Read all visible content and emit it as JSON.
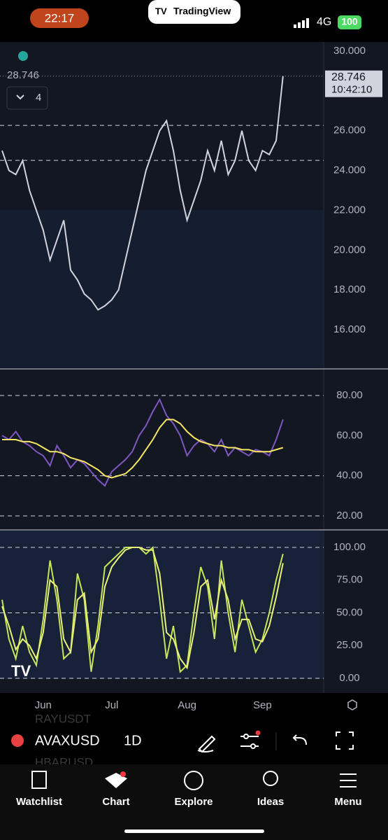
{
  "status_bar": {
    "time": "22:17",
    "app": "TradingView",
    "network": "4G",
    "battery": "100"
  },
  "legend": {
    "price": 28.746,
    "indicators": "4"
  },
  "chart_data": [
    {
      "type": "line",
      "categories": [
        null,
        null,
        null,
        null,
        null,
        null,
        "Jun",
        null,
        null,
        null,
        null,
        null,
        null,
        null,
        null,
        null,
        "Jul",
        null,
        null,
        null,
        null,
        null,
        null,
        null,
        null,
        null,
        null,
        "Aug",
        null,
        null,
        null,
        null,
        null,
        null,
        null,
        null,
        null,
        null,
        "Sep",
        null,
        null,
        null
      ],
      "series": [
        {
          "color": "#d1d4dc",
          "values": [
            25.0,
            24.0,
            23.8,
            24.5,
            23.0,
            22.0,
            21.0,
            19.5,
            20.5,
            21.5,
            19.0,
            18.5,
            17.8,
            17.5,
            17.0,
            17.2,
            17.5,
            18.0,
            19.5,
            21.0,
            22.5,
            24.0,
            25.0,
            26.0,
            26.5,
            25.0,
            23.0,
            21.5,
            22.5,
            23.5,
            25.0,
            24.0,
            25.5,
            23.8,
            24.5,
            26.0,
            24.5,
            24.0,
            25.0,
            24.8,
            25.5,
            28.746
          ]
        }
      ],
      "ylim": [
        14.1,
        30.46
      ],
      "yticks": [
        {
          "value": 30,
          "label": "30.000"
        },
        {
          "value": 26,
          "label": "26.000"
        },
        {
          "value": 24,
          "label": "24.000"
        },
        {
          "value": 22,
          "label": "22.000"
        },
        {
          "value": 20,
          "label": "20.000"
        },
        {
          "value": 18,
          "label": "18.000"
        },
        {
          "value": 16,
          "label": "16.000"
        }
      ],
      "levels": [
        26.27,
        24.51
      ],
      "last_price": 28.746,
      "last_time": "10:42:10"
    },
    {
      "type": "line",
      "series": [
        {
          "color": "#7e57c2",
          "values": [
            60,
            58,
            62,
            57,
            55,
            52,
            50,
            45,
            55,
            50,
            44,
            48,
            46,
            42,
            38,
            35,
            42,
            45,
            48,
            52,
            60,
            65,
            72,
            78,
            70,
            66,
            60,
            50,
            55,
            58,
            56,
            52,
            58,
            50,
            54,
            52,
            50,
            53,
            52,
            50,
            58,
            68
          ]
        },
        {
          "color": "#f5e663",
          "values": [
            58,
            58,
            58,
            57,
            57,
            56,
            54,
            52,
            52,
            51,
            49,
            48,
            47,
            45,
            43,
            40,
            39,
            40,
            41,
            44,
            48,
            53,
            58,
            64,
            68,
            68,
            66,
            62,
            59,
            57,
            56,
            55,
            55,
            54,
            54,
            53,
            53,
            52,
            52,
            52,
            53,
            54
          ]
        }
      ],
      "ylim": [
        13.7,
        92.2
      ],
      "yticks": [
        {
          "value": 80,
          "label": "80.00"
        },
        {
          "value": 60,
          "label": "60.00"
        },
        {
          "value": 40,
          "label": "40.00"
        },
        {
          "value": 20,
          "label": "20.00"
        }
      ],
      "levels": [
        80,
        40,
        20
      ]
    },
    {
      "type": "line",
      "series": [
        {
          "color": "#c6e65a",
          "values": [
            60,
            30,
            15,
            40,
            20,
            10,
            45,
            90,
            60,
            15,
            20,
            80,
            60,
            5,
            40,
            85,
            90,
            95,
            100,
            100,
            100,
            95,
            100,
            60,
            15,
            40,
            5,
            10,
            50,
            85,
            70,
            30,
            90,
            50,
            20,
            60,
            40,
            20,
            30,
            50,
            75,
            95
          ]
        },
        {
          "color": "#eaf07a",
          "values": [
            55,
            40,
            22,
            30,
            25,
            15,
            35,
            75,
            70,
            30,
            20,
            60,
            65,
            20,
            30,
            70,
            85,
            92,
            98,
            100,
            100,
            98,
            98,
            80,
            35,
            30,
            15,
            8,
            35,
            70,
            75,
            45,
            75,
            60,
            30,
            45,
            45,
            30,
            28,
            40,
            62,
            88
          ]
        }
      ],
      "ylim": [
        -11.2,
        112.8
      ],
      "yticks": [
        {
          "value": 100,
          "label": "100.00"
        },
        {
          "value": 75,
          "label": "75.00"
        },
        {
          "value": 50,
          "label": "50.00"
        },
        {
          "value": 25,
          "label": "25.00"
        },
        {
          "value": 0,
          "label": "0.00"
        }
      ],
      "levels": [
        100,
        50,
        0
      ]
    }
  ],
  "toolbar": {
    "symbol": "AVAXUSD",
    "interval": "1D",
    "behind_top": "RAYUSDT",
    "behind_bottom": "HBARUSD"
  },
  "tabs": [
    "Watchlist",
    "Chart",
    "Explore",
    "Ideas",
    "Menu"
  ]
}
